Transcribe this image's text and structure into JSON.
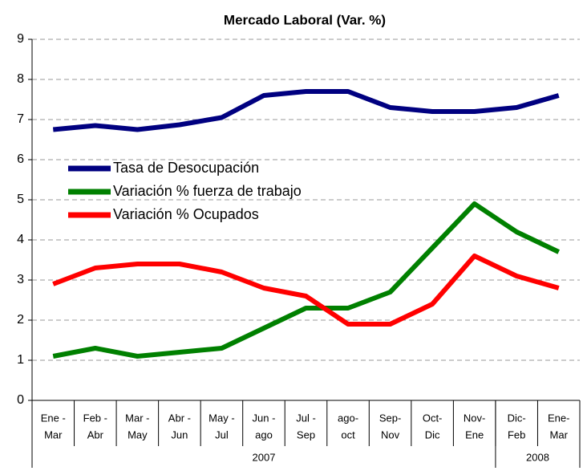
{
  "chart_data": {
    "type": "line",
    "title": "Mercado Laboral (Var. %)",
    "categories": [
      [
        "Ene -",
        "Mar"
      ],
      [
        "Feb -",
        "Abr"
      ],
      [
        "Mar -",
        "May"
      ],
      [
        "Abr -",
        "Jun"
      ],
      [
        "May -",
        "Jul"
      ],
      [
        "Jun -",
        "ago"
      ],
      [
        "Jul -",
        "Sep"
      ],
      [
        "ago-",
        "oct"
      ],
      [
        "Sep-",
        "Nov"
      ],
      [
        "Oct-",
        "Dic"
      ],
      [
        "Nov-",
        "Ene"
      ],
      [
        "Dic-",
        "Feb"
      ],
      [
        "Ene-",
        "Mar"
      ]
    ],
    "groups": [
      {
        "label": "2007",
        "span": 11
      },
      {
        "label": "2008",
        "span": 2
      }
    ],
    "series": [
      {
        "name": "Tasa de Desocupación",
        "color": "#000080",
        "values": [
          6.75,
          6.85,
          6.75,
          6.87,
          7.05,
          7.6,
          7.7,
          7.7,
          7.3,
          7.2,
          7.2,
          7.3,
          7.6
        ]
      },
      {
        "name": "Variación % fuerza de trabajo",
        "color": "#008000",
        "values": [
          1.1,
          1.3,
          1.1,
          1.2,
          1.3,
          1.8,
          2.3,
          2.3,
          2.7,
          3.8,
          4.9,
          4.2,
          3.7
        ]
      },
      {
        "name": "Variación % Ocupados",
        "color": "#ff0000",
        "values": [
          2.9,
          3.3,
          3.4,
          3.4,
          3.2,
          2.8,
          2.6,
          1.9,
          1.9,
          2.4,
          3.6,
          3.1,
          2.8
        ]
      }
    ],
    "ylim": [
      0,
      9
    ],
    "yticks": [
      0,
      1,
      2,
      3,
      4,
      5,
      6,
      7,
      8,
      9
    ],
    "grid": true,
    "legend": "left"
  }
}
